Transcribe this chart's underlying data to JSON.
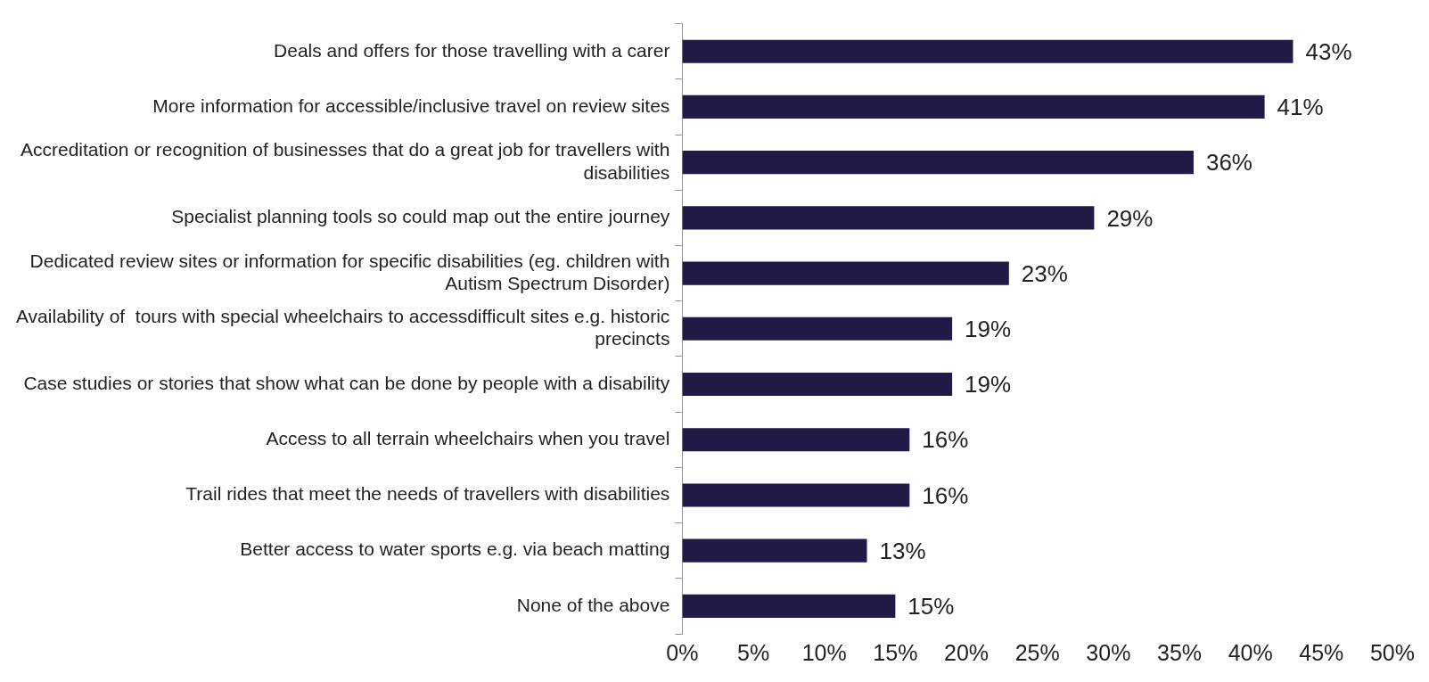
{
  "chart_data": {
    "type": "bar",
    "orientation": "horizontal",
    "categories": [
      "Deals and offers for those travelling with a carer",
      "More information for accessible/inclusive travel on review sites",
      "Accreditation or recognition of businesses that do a great job for travellers with disabilities",
      "Specialist planning tools so could map out the entire journey",
      "Dedicated review sites or information for specific disabilities (eg. children with Autism Spectrum Disorder)",
      "Availability of  tours with special wheelchairs to accessdifficult sites e.g. historic precincts",
      "Case studies or stories that show what can be done by people with a disability",
      "Access to all terrain wheelchairs when you travel",
      "Trail rides that meet the needs of travellers with disabilities",
      "Better access to water sports e.g. via beach matting",
      "None of the above"
    ],
    "values": [
      43,
      41,
      36,
      29,
      23,
      19,
      19,
      16,
      16,
      13,
      15
    ],
    "value_labels": [
      "43%",
      "41%",
      "36%",
      "29%",
      "23%",
      "19%",
      "19%",
      "16%",
      "16%",
      "13%",
      "15%"
    ],
    "color": "#201a47",
    "xlim": [
      0,
      50
    ],
    "xticks": [
      {
        "value": 0,
        "label": "0%"
      },
      {
        "value": 5,
        "label": "5%"
      },
      {
        "value": 10,
        "label": "10%"
      },
      {
        "value": 15,
        "label": "15%"
      },
      {
        "value": 20,
        "label": "20%"
      },
      {
        "value": 25,
        "label": "25%"
      },
      {
        "value": 30,
        "label": "30%"
      },
      {
        "value": 35,
        "label": "35%"
      },
      {
        "value": 40,
        "label": "40%"
      },
      {
        "value": 45,
        "label": "45%"
      },
      {
        "value": 50,
        "label": "50%"
      }
    ],
    "grid": false,
    "legend": false
  }
}
